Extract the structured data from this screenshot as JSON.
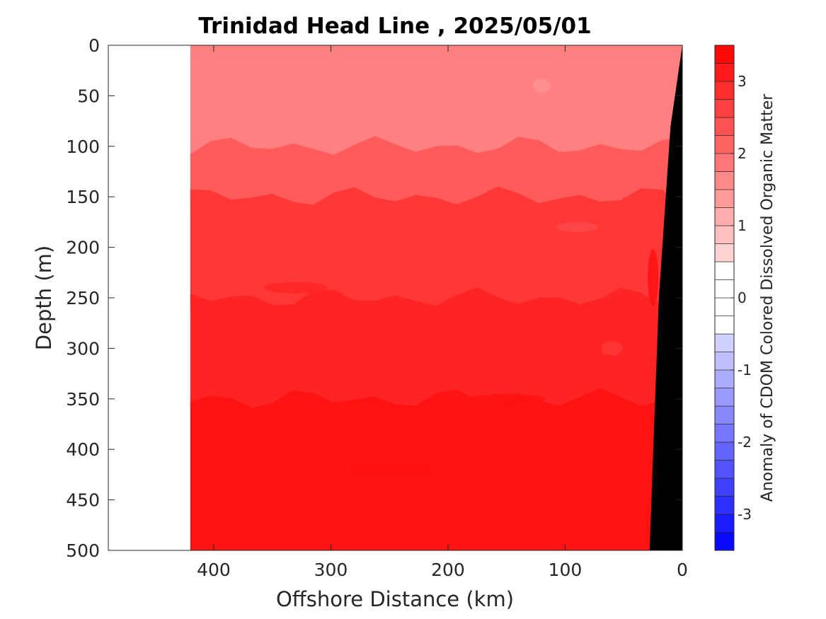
{
  "chart_data": {
    "type": "heatmap",
    "title": "Trinidad Head Line , 2025/05/01",
    "xlabel": "Offshore Distance (km)",
    "ylabel": "Depth (m)",
    "xlim": [
      490,
      0
    ],
    "ylim": [
      0,
      500
    ],
    "xticks": [
      "400",
      "300",
      "200",
      "100",
      "0"
    ],
    "xtick_values": [
      400,
      300,
      200,
      100,
      0
    ],
    "yticks": [
      "0",
      "50",
      "100",
      "150",
      "200",
      "250",
      "300",
      "350",
      "400",
      "450",
      "500"
    ],
    "ytick_values": [
      0,
      50,
      100,
      150,
      200,
      250,
      300,
      350,
      400,
      450,
      500
    ],
    "data_extent_km": [
      420,
      0
    ],
    "colorbar": {
      "label": "Anomaly of CDOM Colored Dissolved Organic Matter",
      "range": [
        -3.5,
        3.5
      ],
      "step": 0.25,
      "ticks": [
        "-3",
        "-2",
        "-1",
        "0",
        "1",
        "2",
        "3"
      ],
      "tick_values": [
        -3,
        -2,
        -1,
        0,
        1,
        2,
        3
      ],
      "low_color": "#0000ff",
      "mid_color": "#ffffff",
      "high_color": "#ff0000"
    },
    "depth_bands": [
      {
        "depth_top": 0,
        "depth_bottom": 100,
        "value": 1.75
      },
      {
        "depth_top": 100,
        "depth_bottom": 150,
        "value": 2.25
      },
      {
        "depth_top": 150,
        "depth_bottom": 250,
        "value": 2.75
      },
      {
        "depth_top": 250,
        "depth_bottom": 350,
        "value": 3.0
      },
      {
        "depth_top": 350,
        "depth_bottom": 500,
        "value": 3.25
      }
    ],
    "bathymetry": {
      "color": "#000000",
      "points": [
        [
          0,
          0
        ],
        [
          10,
          80
        ],
        [
          20,
          250
        ],
        [
          28,
          500
        ],
        [
          0,
          500
        ]
      ]
    }
  }
}
